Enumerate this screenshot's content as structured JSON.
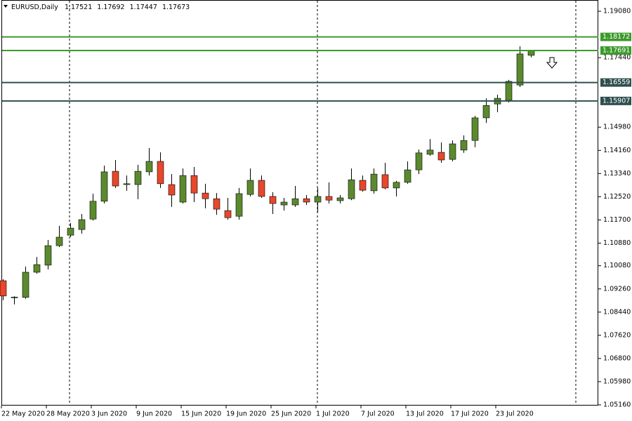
{
  "chart_data": {
    "type": "candlestick",
    "title": "EURUSD,Daily",
    "categories": [
      "22 May 2020",
      null,
      null,
      null,
      "28 May 2020",
      null,
      null,
      null,
      "3 Jun 2020",
      null,
      null,
      null,
      "9 Jun 2020",
      null,
      null,
      null,
      "15 Jun 2020",
      null,
      null,
      null,
      "19 Jun 2020",
      null,
      null,
      null,
      "25 Jun 2020",
      null,
      null,
      null,
      "1 Jul 2020",
      null,
      null,
      null,
      "7 Jul 2020",
      null,
      null,
      null,
      "13 Jul 2020",
      null,
      null,
      null,
      "17 Jul 2020",
      null,
      null,
      null,
      "23 Jul 2020",
      null,
      null,
      null
    ],
    "open": [
      1.0955,
      1.0895,
      1.0896,
      1.0985,
      1.101,
      1.1079,
      1.1116,
      1.1136,
      1.1173,
      1.1236,
      1.1342,
      1.1295,
      1.1295,
      1.134,
      1.1377,
      1.1295,
      1.1233,
      1.1327,
      1.1265,
      1.1245,
      1.1203,
      1.1183,
      1.126,
      1.131,
      1.1253,
      1.1223,
      1.1223,
      1.1245,
      1.1233,
      1.1253,
      1.1238,
      1.1245,
      1.131,
      1.1273,
      1.133,
      1.1283,
      1.1303,
      1.1347,
      1.1402,
      1.1409,
      1.1384,
      1.1417,
      1.1451,
      1.1531,
      1.158,
      1.1593,
      1.1647,
      1.17521
    ],
    "high": [
      1.096,
      1.09,
      1.1005,
      1.1039,
      1.1099,
      1.1149,
      1.1159,
      1.1191,
      1.1263,
      1.1362,
      1.1382,
      1.1327,
      1.1365,
      1.1424,
      1.1409,
      1.1332,
      1.1352,
      1.1357,
      1.1298,
      1.1265,
      1.1248,
      1.1283,
      1.1352,
      1.1327,
      1.1268,
      1.1248,
      1.129,
      1.1258,
      1.1283,
      1.1303,
      1.1258,
      1.1352,
      1.1327,
      1.1352,
      1.1372,
      1.1308,
      1.1377,
      1.1419,
      1.1456,
      1.1444,
      1.1451,
      1.1469,
      1.1538,
      1.16,
      1.1613,
      1.1665,
      1.1784,
      1.17692
    ],
    "low": [
      1.0886,
      1.0871,
      1.0891,
      1.098,
      1.0995,
      1.1074,
      1.1109,
      1.1121,
      1.1168,
      1.1228,
      1.1283,
      1.1273,
      1.1243,
      1.1327,
      1.1283,
      1.1216,
      1.1228,
      1.1233,
      1.1211,
      1.1188,
      1.1171,
      1.1171,
      1.1253,
      1.1248,
      1.1191,
      1.1203,
      1.1216,
      1.1223,
      1.1198,
      1.1228,
      1.1228,
      1.124,
      1.127,
      1.1263,
      1.1278,
      1.1253,
      1.1298,
      1.1332,
      1.1397,
      1.1372,
      1.1377,
      1.1407,
      1.1427,
      1.1513,
      1.1551,
      1.1585,
      1.164,
      1.17447
    ],
    "close": [
      1.0901,
      1.0897,
      1.0985,
      1.1012,
      1.1079,
      1.1109,
      1.1141,
      1.1171,
      1.1236,
      1.134,
      1.129,
      1.1298,
      1.1342,
      1.1377,
      1.1298,
      1.1258,
      1.1327,
      1.1265,
      1.1245,
      1.1208,
      1.1178,
      1.1263,
      1.131,
      1.1253,
      1.1228,
      1.1233,
      1.1245,
      1.1233,
      1.1253,
      1.124,
      1.1248,
      1.1312,
      1.1275,
      1.1332,
      1.1283,
      1.1303,
      1.1347,
      1.1407,
      1.1417,
      1.1382,
      1.1439,
      1.1451,
      1.1531,
      1.1575,
      1.16,
      1.166,
      1.1757,
      1.17673
    ],
    "up_color": "#5b8a2e",
    "down_color": "#e8472b",
    "ylim": [
      1.05135,
      1.19477
    ],
    "yticks": [
      {
        "value": 1.1908,
        "label": "1.19080"
      },
      {
        "value": 1.1744,
        "label": "1.17440"
      },
      {
        "value": 1.1498,
        "label": "1.14980"
      },
      {
        "value": 1.1416,
        "label": "1.14160"
      },
      {
        "value": 1.1334,
        "label": "1.13340"
      },
      {
        "value": 1.1252,
        "label": "1.12520"
      },
      {
        "value": 1.117,
        "label": "1.11700"
      },
      {
        "value": 1.1088,
        "label": "1.10880"
      },
      {
        "value": 1.1008,
        "label": "1.10080"
      },
      {
        "value": 1.0926,
        "label": "1.09260"
      },
      {
        "value": 1.0844,
        "label": "1.08440"
      },
      {
        "value": 1.0762,
        "label": "1.07620"
      },
      {
        "value": 1.068,
        "label": "1.06800"
      },
      {
        "value": 1.0598,
        "label": "1.05980"
      },
      {
        "value": 1.0516,
        "label": "1.05160"
      }
    ],
    "levels": [
      {
        "value": 1.18172,
        "color": "#3c9a2c"
      },
      {
        "value": 1.17691,
        "color": "#3c9a2c"
      },
      {
        "value": 1.16559,
        "color": "#2f4f4f"
      },
      {
        "value": 1.15907,
        "color": "#2f4f4f"
      }
    ]
  }
}
